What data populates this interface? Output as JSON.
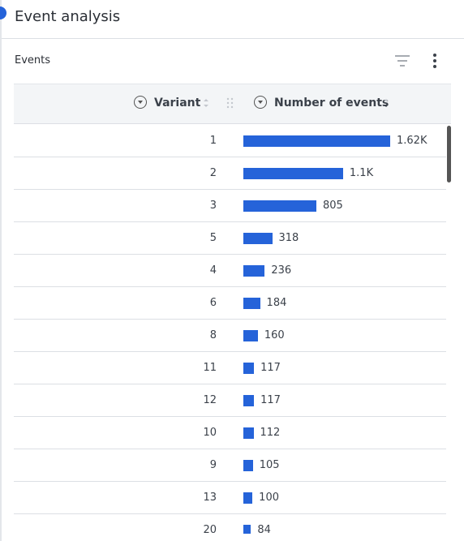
{
  "header": {
    "title": "Event analysis"
  },
  "panel": {
    "title": "Events"
  },
  "table": {
    "columns": [
      "Variant",
      "Number of events"
    ],
    "bar_color": "#2563d9",
    "rows": [
      {
        "variant": 1,
        "events": 1620,
        "events_label": "1.62K"
      },
      {
        "variant": 2,
        "events": 1100,
        "events_label": "1.1K"
      },
      {
        "variant": 3,
        "events": 805
      },
      {
        "variant": 5,
        "events": 318
      },
      {
        "variant": 4,
        "events": 236
      },
      {
        "variant": 6,
        "events": 184
      },
      {
        "variant": 8,
        "events": 160
      },
      {
        "variant": 11,
        "events": 117
      },
      {
        "variant": 12,
        "events": 117
      },
      {
        "variant": 10,
        "events": 112
      },
      {
        "variant": 9,
        "events": 105
      },
      {
        "variant": 13,
        "events": 100
      },
      {
        "variant": 20,
        "events": 84
      }
    ]
  }
}
